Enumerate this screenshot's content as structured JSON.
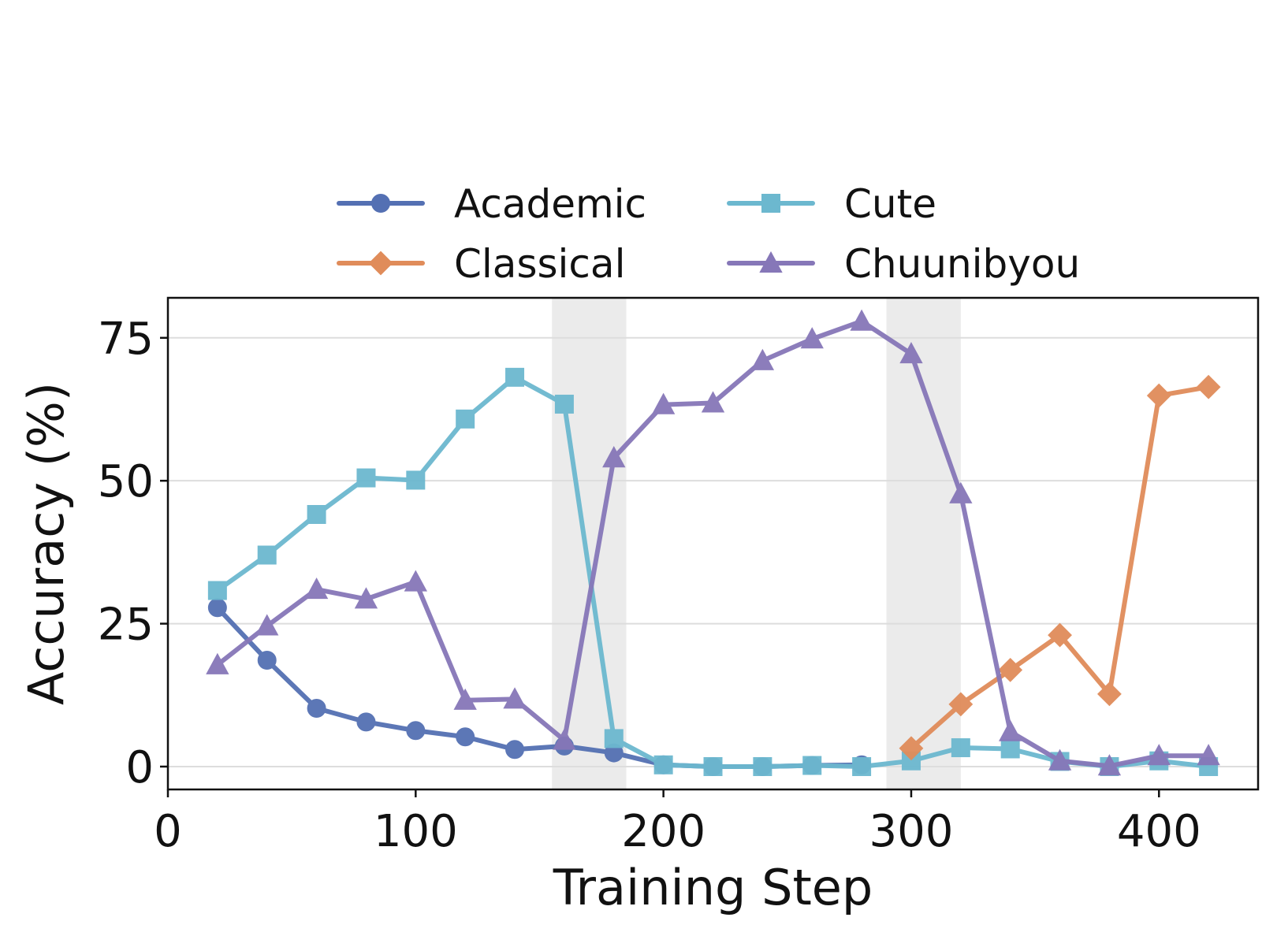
{
  "chart_data": {
    "type": "line",
    "xlabel": "Training Step",
    "ylabel": "Accuracy (%)",
    "xlim": [
      0,
      440
    ],
    "ylim": [
      -4,
      82
    ],
    "xticks": [
      0,
      100,
      200,
      300,
      400
    ],
    "xtick_labels": [
      "0",
      "100",
      "200",
      "300",
      "400"
    ],
    "yticks": [
      0,
      25,
      50,
      75
    ],
    "ytick_labels": [
      "0",
      "25",
      "50",
      "75"
    ],
    "grid": "horizontal",
    "legend_position": "top-center",
    "shaded_regions": [
      {
        "x_start": 155,
        "x_end": 185,
        "color": "#ebebeb"
      },
      {
        "x_start": 290,
        "x_end": 320,
        "color": "#ebebeb"
      }
    ],
    "series": [
      {
        "name": "Academic",
        "color": "#5470b3",
        "marker": "circle",
        "x": [
          20,
          40,
          60,
          80,
          100,
          120,
          140,
          160,
          180,
          200,
          220,
          240,
          260,
          280
        ],
        "y": [
          27.8,
          18.6,
          10.2,
          7.8,
          6.3,
          5.2,
          3.0,
          3.6,
          2.4,
          0.3,
          0.0,
          0.0,
          0.2,
          0.3
        ]
      },
      {
        "name": "Cute",
        "color": "#6cb8cf",
        "marker": "square",
        "x": [
          20,
          40,
          60,
          80,
          100,
          120,
          140,
          160,
          180,
          200,
          220,
          240,
          260,
          280,
          300,
          320,
          340,
          360,
          380,
          400,
          420
        ],
        "y": [
          30.8,
          37.0,
          44.1,
          50.5,
          50.1,
          60.8,
          68.1,
          63.4,
          4.9,
          0.3,
          0.0,
          0.0,
          0.2,
          0.0,
          1.0,
          3.3,
          3.1,
          0.9,
          0.0,
          1.0,
          0.0
        ]
      },
      {
        "name": "Classical",
        "color": "#e08c5a",
        "marker": "diamond",
        "x": [
          300,
          320,
          340,
          360,
          380,
          400,
          420
        ],
        "y": [
          3.2,
          10.9,
          16.9,
          23.0,
          12.7,
          64.9,
          66.4
        ]
      },
      {
        "name": "Chuunibyou",
        "color": "#8677b8",
        "marker": "triangle",
        "x": [
          20,
          40,
          60,
          80,
          100,
          120,
          140,
          160,
          180,
          200,
          220,
          240,
          260,
          280,
          300,
          320,
          340,
          360,
          380,
          400,
          420
        ],
        "y": [
          17.8,
          24.6,
          31.0,
          29.3,
          32.3,
          11.6,
          11.8,
          4.6,
          54.0,
          63.3,
          63.6,
          71.0,
          74.8,
          77.9,
          72.2,
          47.7,
          6.1,
          1.0,
          0.1,
          1.9,
          1.9
        ]
      }
    ],
    "legend": {
      "columns": [
        [
          "Academic",
          "Classical"
        ],
        [
          "Cute",
          "Chuunibyou"
        ]
      ]
    }
  }
}
